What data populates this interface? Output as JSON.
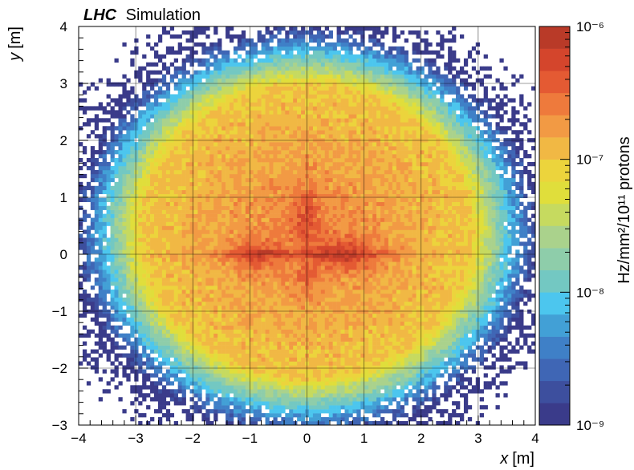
{
  "chart_data": {
    "type": "heatmap",
    "header": {
      "experiment": "LHC",
      "label": "Simulation"
    },
    "xlabel": {
      "var": "x",
      "unit": "[m]"
    },
    "ylabel": {
      "var": "y",
      "unit": "[m]"
    },
    "xlim": [
      -4,
      4
    ],
    "ylim": [
      -3,
      4
    ],
    "x_ticks": [
      -4,
      -3,
      -2,
      -1,
      0,
      1,
      2,
      3,
      4
    ],
    "y_ticks": [
      -3,
      -2,
      -1,
      0,
      1,
      2,
      3,
      4
    ],
    "x_tick_labels": [
      "−4",
      "−3",
      "−2",
      "−1",
      "0",
      "1",
      "2",
      "3",
      "4"
    ],
    "y_tick_labels": [
      "−3",
      "−2",
      "−1",
      "0",
      "1",
      "2",
      "3",
      "4"
    ],
    "grid": true,
    "colorbar": {
      "scale": "log",
      "range": [
        1e-09,
        1e-06
      ],
      "label": "Hz/mm²/10¹¹ protons",
      "tick_values": [
        1e-09,
        1e-08,
        1e-07,
        1e-06
      ],
      "tick_labels": [
        "10⁻⁹",
        "10⁻⁸",
        "10⁻⁷",
        "10⁻⁶"
      ],
      "colors": [
        "#3a3b8a",
        "#3d4f9e",
        "#3f66b5",
        "#3f80c7",
        "#42a0d6",
        "#4cc6ee",
        "#73c8c2",
        "#8ecdaa",
        "#aad28c",
        "#c6da5f",
        "#e0de3b",
        "#ecd43c",
        "#f1b844",
        "#f29a44",
        "#ee7a3c",
        "#e45a33",
        "#d4452c",
        "#b93a28"
      ]
    },
    "features": {
      "core_peak_rate": 6e-07,
      "background_rate": 1e-07,
      "outer_edge_rate": 1.5e-09,
      "horizontal_hotspots_x_m": [
        -0.9,
        0.7
      ],
      "vertical_hotspots_y_m": [
        0.7,
        -0.5
      ]
    }
  }
}
